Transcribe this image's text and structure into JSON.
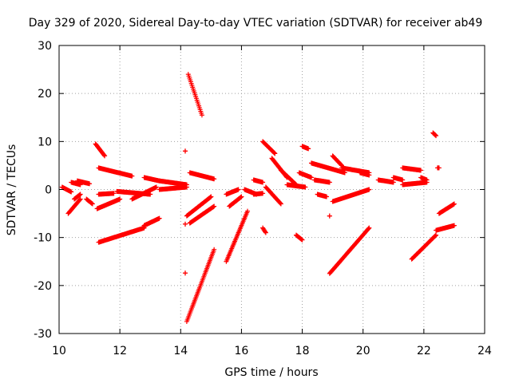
{
  "chart_data": {
    "type": "scatter",
    "title": "Day 329 of 2020, Sidereal Day-to-day VTEC variation (SDTVAR) for receiver ab49",
    "xlabel": "GPS time / hours",
    "ylabel": "SDTVAR / TECUs",
    "xlim": [
      10,
      24
    ],
    "ylim": [
      -30,
      30
    ],
    "xticks": [
      10,
      12,
      14,
      16,
      18,
      20,
      22,
      24
    ],
    "yticks": [
      -30,
      -20,
      -10,
      0,
      10,
      20,
      30
    ],
    "marker": "+",
    "color": "#ff0000",
    "grid": true,
    "tracks": [
      {
        "x": [
          10.1,
          10.25
        ],
        "y": [
          0.5,
          0.0
        ]
      },
      {
        "x": [
          10.25,
          10.4
        ],
        "y": [
          0.0,
          -0.5
        ]
      },
      {
        "x": [
          10.3,
          10.7
        ],
        "y": [
          -5.0,
          -2.0
        ]
      },
      {
        "x": [
          10.4,
          10.7
        ],
        "y": [
          1.5,
          1.0
        ]
      },
      {
        "x": [
          10.5,
          10.7
        ],
        "y": [
          -2.0,
          -1.0
        ]
      },
      {
        "x": [
          10.6,
          11.0
        ],
        "y": [
          1.8,
          1.2
        ]
      },
      {
        "x": [
          10.9,
          11.1
        ],
        "y": [
          -2.0,
          -3.0
        ]
      },
      {
        "x": [
          11.2,
          11.5
        ],
        "y": [
          9.5,
          7.0
        ]
      },
      {
        "x": [
          11.3,
          12.4
        ],
        "y": [
          4.5,
          2.8
        ]
      },
      {
        "x": [
          11.25,
          12.0
        ],
        "y": [
          -4.0,
          -2.0
        ]
      },
      {
        "x": [
          11.3,
          11.8
        ],
        "y": [
          -1.0,
          -0.8
        ]
      },
      {
        "x": [
          11.9,
          13.0
        ],
        "y": [
          -0.4,
          -1.0
        ]
      },
      {
        "x": [
          11.3,
          12.8
        ],
        "y": [
          -11.0,
          -8.0
        ]
      },
      {
        "x": [
          12.8,
          13.3
        ],
        "y": [
          -7.5,
          -6.0
        ]
      },
      {
        "x": [
          12.4,
          13.2
        ],
        "y": [
          -2.0,
          0.5
        ]
      },
      {
        "x": [
          12.8,
          13.3
        ],
        "y": [
          2.5,
          1.8
        ]
      },
      {
        "x": [
          13.3,
          14.2
        ],
        "y": [
          0.0,
          0.5
        ]
      },
      {
        "x": [
          13.3,
          14.2
        ],
        "y": [
          1.8,
          1.0
        ]
      },
      {
        "x": [
          14.15,
          14.15
        ],
        "y": [
          8.0,
          8.0
        ]
      },
      {
        "x": [
          14.15,
          14.15
        ],
        "y": [
          -7.2,
          -7.2
        ]
      },
      {
        "x": [
          14.15,
          14.15
        ],
        "y": [
          -17.4,
          -17.4
        ]
      },
      {
        "x": [
          14.25,
          14.7
        ],
        "y": [
          24.0,
          15.5
        ]
      },
      {
        "x": [
          14.3,
          15.1
        ],
        "y": [
          3.5,
          2.2
        ]
      },
      {
        "x": [
          14.2,
          15.0
        ],
        "y": [
          -5.5,
          -1.5
        ]
      },
      {
        "x": [
          14.3,
          15.1
        ],
        "y": [
          -7.0,
          -3.5
        ]
      },
      {
        "x": [
          14.2,
          15.1
        ],
        "y": [
          -27.5,
          -12.5
        ]
      },
      {
        "x": [
          15.5,
          15.9
        ],
        "y": [
          -1.0,
          0.0
        ]
      },
      {
        "x": [
          15.5,
          16.2
        ],
        "y": [
          -15.0,
          -4.5
        ]
      },
      {
        "x": [
          15.6,
          16.0
        ],
        "y": [
          -3.5,
          -1.5
        ]
      },
      {
        "x": [
          16.1,
          16.5
        ],
        "y": [
          0.0,
          -1.0
        ]
      },
      {
        "x": [
          16.4,
          16.7
        ],
        "y": [
          2.0,
          1.5
        ]
      },
      {
        "x": [
          16.4,
          16.7
        ],
        "y": [
          -1.0,
          -0.8
        ]
      },
      {
        "x": [
          16.8,
          17.3
        ],
        "y": [
          0.5,
          -3.0
        ]
      },
      {
        "x": [
          16.7,
          16.8
        ],
        "y": [
          -8.0,
          -9.0
        ]
      },
      {
        "x": [
          16.7,
          17.1
        ],
        "y": [
          10.0,
          7.5
        ]
      },
      {
        "x": [
          17.0,
          17.5
        ],
        "y": [
          6.5,
          2.5
        ]
      },
      {
        "x": [
          17.3,
          17.8
        ],
        "y": [
          4.0,
          1.0
        ]
      },
      {
        "x": [
          17.5,
          18.1
        ],
        "y": [
          1.0,
          0.5
        ]
      },
      {
        "x": [
          17.8,
          18.0
        ],
        "y": [
          -9.5,
          -10.5
        ]
      },
      {
        "x": [
          17.9,
          18.3
        ],
        "y": [
          3.5,
          2.5
        ]
      },
      {
        "x": [
          18.0,
          18.2
        ],
        "y": [
          9.0,
          8.5
        ]
      },
      {
        "x": [
          18.3,
          19.4
        ],
        "y": [
          5.5,
          3.5
        ]
      },
      {
        "x": [
          18.4,
          18.9
        ],
        "y": [
          2.0,
          1.5
        ]
      },
      {
        "x": [
          18.5,
          18.8
        ],
        "y": [
          -1.0,
          -1.5
        ]
      },
      {
        "x": [
          18.9,
          18.9
        ],
        "y": [
          -5.5,
          -5.5
        ]
      },
      {
        "x": [
          19.0,
          20.2
        ],
        "y": [
          -2.5,
          0.0
        ]
      },
      {
        "x": [
          18.9,
          20.2
        ],
        "y": [
          -17.5,
          -8.0
        ]
      },
      {
        "x": [
          19.0,
          19.3
        ],
        "y": [
          7.0,
          5.0
        ]
      },
      {
        "x": [
          19.3,
          20.2
        ],
        "y": [
          4.5,
          3.5
        ]
      },
      {
        "x": [
          19.9,
          20.2
        ],
        "y": [
          3.5,
          3.0
        ]
      },
      {
        "x": [
          20.5,
          21.0
        ],
        "y": [
          2.0,
          1.5
        ]
      },
      {
        "x": [
          21.0,
          21.3
        ],
        "y": [
          2.5,
          2.0
        ]
      },
      {
        "x": [
          21.3,
          21.9
        ],
        "y": [
          4.5,
          4.0
        ]
      },
      {
        "x": [
          21.3,
          22.1
        ],
        "y": [
          1.0,
          1.5
        ]
      },
      {
        "x": [
          21.9,
          22.1
        ],
        "y": [
          2.5,
          2.0
        ]
      },
      {
        "x": [
          21.6,
          22.4
        ],
        "y": [
          -14.5,
          -9.5
        ]
      },
      {
        "x": [
          22.3,
          22.4
        ],
        "y": [
          11.8,
          11.2
        ]
      },
      {
        "x": [
          22.45,
          22.5
        ],
        "y": [
          4.5,
          4.5
        ]
      },
      {
        "x": [
          22.5,
          23.0
        ],
        "y": [
          -5.0,
          -3.0
        ]
      },
      {
        "x": [
          22.4,
          23.0
        ],
        "y": [
          -8.5,
          -7.5
        ]
      }
    ]
  }
}
